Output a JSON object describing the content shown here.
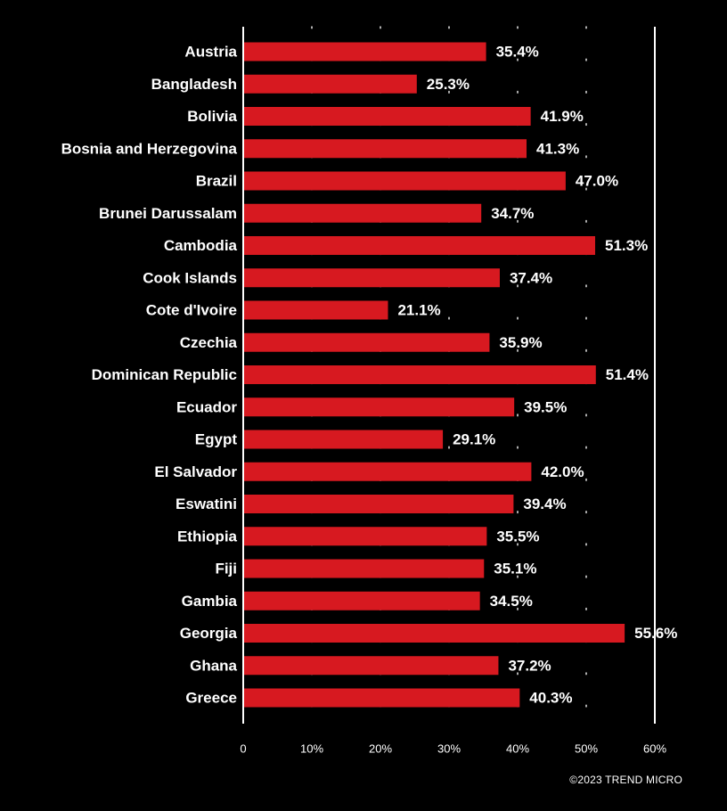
{
  "chart_data": {
    "type": "bar",
    "orientation": "horizontal",
    "categories": [
      "Austria",
      "Bangladesh",
      "Bolivia",
      "Bosnia and Herzegovina",
      "Brazil",
      "Brunei Darussalam",
      "Cambodia",
      "Cook Islands",
      "Cote d'Ivoire",
      "Czechia",
      "Dominican Republic",
      "Ecuador",
      "Egypt",
      "El Salvador",
      "Eswatini",
      "Ethiopia",
      "Fiji",
      "Gambia",
      "Georgia",
      "Ghana",
      "Greece"
    ],
    "values": [
      35.4,
      25.3,
      41.9,
      41.3,
      47.0,
      34.7,
      51.3,
      37.4,
      21.1,
      35.9,
      51.4,
      39.5,
      29.1,
      42.0,
      39.4,
      35.5,
      35.1,
      34.5,
      55.6,
      37.2,
      40.3
    ],
    "value_labels": [
      "35.4%",
      "25.3%",
      "41.9%",
      "41.3%",
      "47.0%",
      "34.7%",
      "51.3%",
      "37.4%",
      "21.1%",
      "35.9%",
      "51.4%",
      "39.5%",
      "29.1%",
      "42.0%",
      "39.4%",
      "35.5%",
      "35.1%",
      "34.5%",
      "55.6%",
      "37.2%",
      "40.3%"
    ],
    "xlim": [
      0,
      60
    ],
    "xticks": [
      0,
      10,
      20,
      30,
      40,
      50,
      60
    ],
    "xtick_labels": [
      "0",
      "10%",
      "20%",
      "30%",
      "40%",
      "50%",
      "60%"
    ],
    "grid": "dotted vertical",
    "bar_color": "#d71920",
    "background_color": "#000000",
    "text_color": "#ffffff"
  },
  "footer": {
    "copyright": "©2023 TREND MICRO"
  }
}
